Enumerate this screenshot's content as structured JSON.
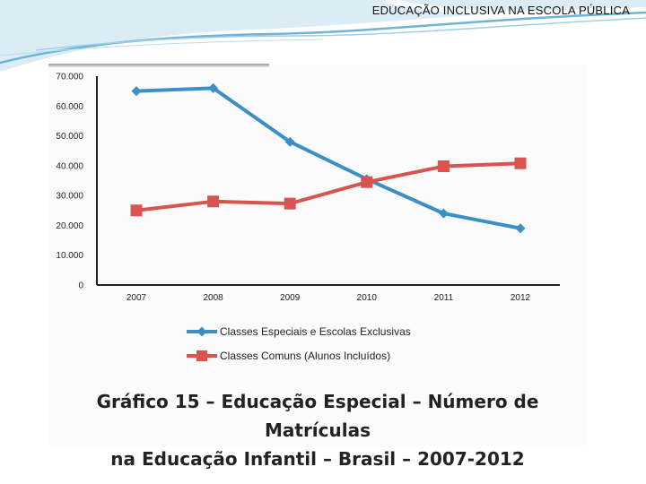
{
  "slide": {
    "title": "EDUCAÇÃO INCLUSIVA NA ESCOLA PÚBLICA"
  },
  "caption": {
    "line1": "Gráfico 15 – Educação Especial – Número de Matrículas",
    "line2": "na Educação Infantil – Brasil – 2007-2012"
  },
  "colors": {
    "series_blue": "#3b8fc4",
    "series_red": "#d9534f",
    "axis": "#222222"
  },
  "chart_data": {
    "type": "line",
    "title": "Gráfico 15 – Educação Especial – Número de Matrículas na Educação Infantil – Brasil – 2007-2012",
    "x": [
      "2007",
      "2008",
      "2009",
      "2010",
      "2011",
      "2012"
    ],
    "ylim": [
      0,
      70000
    ],
    "yticks": [
      0,
      10000,
      20000,
      30000,
      40000,
      50000,
      60000,
      70000
    ],
    "ytick_labels": [
      "0",
      "10.000",
      "20.000",
      "30.000",
      "40.000",
      "50.000",
      "60.000",
      "70.000"
    ],
    "grid": false,
    "legend": "bottom",
    "series": [
      {
        "name": "Classes Especiais e Escolas Exclusivas",
        "marker": "diamond",
        "color": "#3b8fc4",
        "values": [
          65000,
          66000,
          48000,
          35500,
          24000,
          19000
        ]
      },
      {
        "name": "Classes Comuns (Alunos Incluídos)",
        "marker": "square",
        "color": "#d9534f",
        "values": [
          25000,
          28000,
          27300,
          34500,
          39800,
          40800
        ]
      }
    ]
  }
}
